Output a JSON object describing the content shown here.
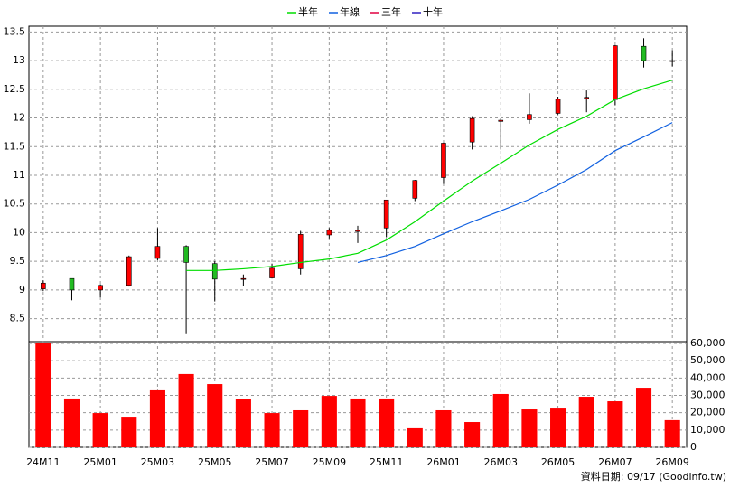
{
  "chart_data": {
    "type": "candlestick",
    "categories": [
      "24M11",
      null,
      "25M01",
      null,
      "25M03",
      null,
      "25M05",
      null,
      "25M07",
      null,
      "25M09",
      null,
      "25M11",
      null,
      "26M01",
      null,
      "26M03",
      null,
      "26M05",
      null,
      "26M07",
      null,
      "26M09"
    ],
    "open": [
      9.02,
      9.2,
      9.0,
      9.08,
      9.55,
      9.76,
      9.46,
      9.2,
      9.21,
      9.37,
      9.96,
      10.02,
      10.08,
      10.6,
      10.96,
      11.58,
      11.94,
      11.97,
      12.08,
      12.34,
      12.32,
      13.25,
      13.0
    ],
    "high": [
      9.17,
      9.2,
      9.1,
      9.6,
      10.08,
      9.78,
      9.5,
      9.27,
      9.46,
      10.03,
      10.08,
      10.12,
      10.57,
      10.92,
      11.57,
      12.03,
      11.99,
      12.43,
      12.37,
      12.48,
      13.27,
      13.39,
      13.18
    ],
    "low": [
      8.98,
      8.82,
      8.87,
      9.06,
      9.52,
      8.23,
      8.8,
      9.07,
      9.2,
      9.27,
      9.9,
      9.82,
      9.92,
      10.55,
      10.85,
      11.45,
      11.45,
      11.9,
      12.06,
      12.1,
      12.22,
      12.88,
      12.9
    ],
    "close": [
      9.12,
      9.0,
      9.08,
      9.58,
      9.76,
      9.48,
      9.19,
      9.2,
      9.38,
      9.97,
      10.04,
      10.04,
      10.57,
      10.91,
      11.56,
      11.99,
      11.96,
      12.06,
      12.33,
      12.36,
      13.26,
      13.0,
      13.0
    ],
    "up_color": "#ff0000",
    "down_color": "#22bb22",
    "ylim": [
      8.1,
      13.6
    ],
    "yticks": [
      8.5,
      9,
      9.5,
      10,
      10.5,
      11,
      11.5,
      12,
      12.5,
      13,
      13.5
    ],
    "grid": true,
    "series": [
      {
        "name": "半年",
        "color": "#00dd00",
        "values": [
          null,
          null,
          null,
          null,
          null,
          9.34,
          9.34,
          9.37,
          9.41,
          9.48,
          9.54,
          9.64,
          9.87,
          10.19,
          10.55,
          10.9,
          11.21,
          11.53,
          11.8,
          12.03,
          12.32,
          12.51,
          12.66
        ]
      },
      {
        "name": "年線",
        "color": "#1060e0",
        "values": [
          null,
          null,
          null,
          null,
          null,
          null,
          null,
          null,
          null,
          null,
          null,
          9.48,
          9.6,
          9.76,
          9.98,
          10.19,
          10.38,
          10.58,
          10.83,
          11.1,
          11.43,
          11.67,
          11.92
        ]
      },
      {
        "name": "三年",
        "color": "#e00040",
        "values": [
          null,
          null,
          null,
          null,
          null,
          null,
          null,
          null,
          null,
          null,
          null,
          null,
          null,
          null,
          null,
          null,
          null,
          null,
          null,
          null,
          null,
          null,
          null
        ]
      },
      {
        "name": "十年",
        "color": "#3020c0",
        "values": [
          null,
          null,
          null,
          null,
          null,
          null,
          null,
          null,
          null,
          null,
          null,
          null,
          null,
          null,
          null,
          null,
          null,
          null,
          null,
          null,
          null,
          null,
          null
        ]
      }
    ],
    "volume": {
      "type": "bar",
      "color": "#ff0000",
      "values": [
        60500,
        28200,
        19800,
        17700,
        32900,
        42300,
        36500,
        27700,
        19800,
        21400,
        29700,
        28200,
        28200,
        11000,
        21400,
        14600,
        30800,
        21900,
        22400,
        29200,
        26600,
        34400,
        15700
      ],
      "y2lim": [
        0,
        60000
      ],
      "y2ticks": [
        0,
        {
          "value": 10000,
          "label": "10,000"
        },
        {
          "value": 20000,
          "label": "20,000"
        },
        {
          "value": 30000,
          "label": "30,000"
        },
        {
          "value": 40000,
          "label": "40,000"
        },
        {
          "value": 50000,
          "label": "50,000"
        },
        {
          "value": 60000,
          "label": "60,000"
        }
      ]
    }
  },
  "footer": "資料日期: 09/17 (Goodinfo.tw)"
}
